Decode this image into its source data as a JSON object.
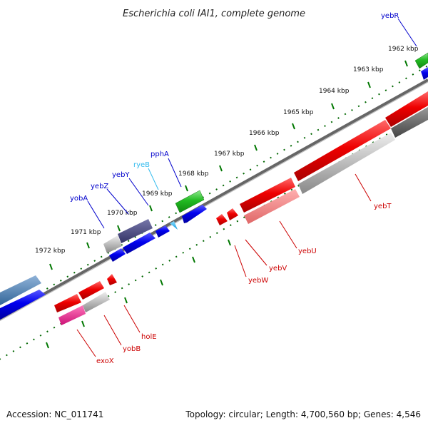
{
  "title": "Escherichia coli IAI1, complete genome",
  "footer": {
    "accession": "Accession: NC_011741",
    "summary": "Topology: circular; Length: 4,700,560 bp; Genes: 4,546"
  },
  "colors": {
    "forward_label": "#0000cc",
    "reverse_label": "#cc0000",
    "rna_label": "#33bbee",
    "tick": "#007700",
    "backbone": "#888888"
  },
  "ticks": [
    "1962 kbp",
    "1963 kbp",
    "1964 kbp",
    "1965 kbp",
    "1966 kbp",
    "1967 kbp",
    "1968 kbp",
    "1969 kbp",
    "1970 kbp",
    "1971 kbp",
    "1972 kbp"
  ],
  "genes": {
    "yebR": "yebR",
    "pphA": "pphA",
    "ryeB": "ryeB",
    "yebY": "yebY",
    "yebZ": "yebZ",
    "yobA": "yobA",
    "yebT": "yebT",
    "yebU": "yebU",
    "yebV": "yebV",
    "yebW": "yebW",
    "holE": "holE",
    "yobB": "yobB",
    "exoX": "exoX"
  }
}
